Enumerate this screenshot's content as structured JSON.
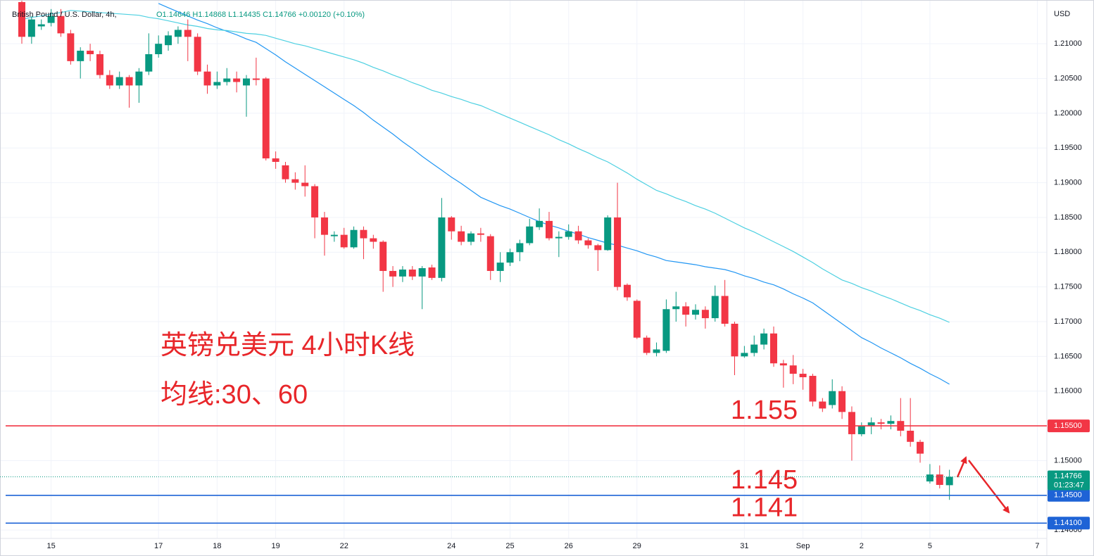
{
  "header": {
    "symbol": "British Pound / U.S. Dollar, 4h,",
    "ohlc": "O1.14646 H1.14868 L1.14435 C1.14766 +0.00120 (+0.10%)",
    "currency": "USD"
  },
  "chart_data": {
    "type": "candlestick",
    "annotations": [
      "英镑兑美元 4小时K线",
      "均线:30、60"
    ],
    "categories": [
      null,
      null,
      null,
      "15",
      null,
      null,
      null,
      null,
      null,
      null,
      null,
      null,
      null,
      null,
      "17",
      null,
      null,
      null,
      null,
      null,
      "18",
      null,
      null,
      null,
      null,
      null,
      "19",
      null,
      null,
      null,
      null,
      null,
      null,
      "22",
      null,
      null,
      null,
      null,
      null,
      null,
      null,
      null,
      null,
      null,
      "24",
      null,
      null,
      null,
      null,
      null,
      "25",
      null,
      null,
      null,
      null,
      null,
      "26",
      null,
      null,
      null,
      null,
      null,
      null,
      "29",
      null,
      null,
      null,
      null,
      null,
      null,
      null,
      null,
      null,
      null,
      "31",
      null,
      null,
      null,
      null,
      null,
      "Sep",
      null,
      null,
      null,
      null,
      null,
      "2",
      null,
      null,
      null,
      null,
      null,
      null,
      "5",
      null,
      null,
      null,
      null,
      null,
      null,
      null,
      null,
      null,
      null,
      "7"
    ],
    "open": [
      1.216,
      1.211,
      1.2125,
      1.213,
      1.214,
      1.2115,
      1.2075,
      1.209,
      1.2085,
      1.2055,
      1.204,
      1.2052,
      1.204,
      1.206,
      1.2085,
      1.2098,
      1.211,
      1.212,
      1.211,
      1.206,
      1.204,
      1.2045,
      1.205,
      1.204,
      1.205,
      1.205,
      1.1935,
      1.1925,
      1.1905,
      1.19,
      1.1895,
      1.185,
      1.1823,
      1.1825,
      1.1807,
      1.1832,
      1.182,
      1.1815,
      1.1773,
      1.1765,
      1.1775,
      1.1765,
      1.1778,
      1.1763,
      1.185,
      1.183,
      1.1815,
      1.1827,
      1.1823,
      1.1773,
      1.1785,
      1.18,
      1.1813,
      1.1836,
      1.1845,
      1.182,
      1.1822,
      1.183,
      1.1817,
      1.181,
      1.1803,
      1.185,
      1.1753,
      1.173,
      1.1677,
      1.1655,
      1.1658,
      1.1718,
      1.1722,
      1.171,
      1.1717,
      1.1705,
      1.1737,
      1.1697,
      1.165,
      1.1655,
      1.1667,
      1.1683,
      1.164,
      1.1637,
      1.1625,
      1.1622,
      1.1585,
      1.158,
      1.16,
      1.157,
      1.1538,
      1.155,
      1.1555,
      1.1553,
      1.1557,
      1.1543,
      1.1527,
      1.147,
      1.148,
      1.14646,
      null,
      null,
      null,
      null,
      null,
      null,
      null,
      null,
      null
    ],
    "high": [
      1.217,
      1.214,
      1.2135,
      1.215,
      1.215,
      1.212,
      1.2095,
      1.21,
      1.209,
      1.2062,
      1.206,
      1.2055,
      1.2065,
      1.2115,
      1.2112,
      1.2118,
      1.2125,
      1.2135,
      1.2115,
      1.207,
      1.206,
      1.2065,
      1.206,
      1.2055,
      1.208,
      1.2052,
      1.1945,
      1.193,
      1.1915,
      1.1925,
      1.1898,
      1.1858,
      1.183,
      1.1835,
      1.1837,
      1.1837,
      1.1825,
      1.1817,
      1.178,
      1.178,
      1.178,
      1.178,
      1.1782,
      1.1878,
      1.1852,
      1.1838,
      1.183,
      1.1835,
      1.1826,
      1.18,
      1.1805,
      1.1818,
      1.1848,
      1.1863,
      1.1858,
      1.183,
      1.184,
      1.1838,
      1.182,
      1.1812,
      1.1853,
      1.19,
      1.1755,
      1.1732,
      1.168,
      1.167,
      1.1732,
      1.1743,
      1.1728,
      1.1725,
      1.1722,
      1.1752,
      1.176,
      1.17,
      1.1665,
      1.168,
      1.169,
      1.1693,
      1.1645,
      1.1652,
      1.1632,
      1.1625,
      1.159,
      1.1617,
      1.1607,
      1.1578,
      1.1555,
      1.1562,
      1.156,
      1.1565,
      1.159,
      1.159,
      1.153,
      1.1495,
      1.1493,
      1.14868,
      null,
      null,
      null,
      null,
      null,
      null,
      null,
      null,
      null
    ],
    "low": [
      1.21,
      1.21,
      1.212,
      1.2125,
      1.211,
      1.207,
      1.205,
      1.2075,
      1.205,
      1.2035,
      1.2035,
      1.2008,
      1.2015,
      1.2055,
      1.208,
      1.209,
      1.21,
      1.2075,
      1.2055,
      1.2028,
      1.2035,
      1.204,
      1.203,
      1.1995,
      1.204,
      1.1932,
      1.192,
      1.19,
      1.189,
      1.188,
      1.182,
      1.1795,
      1.1815,
      1.1805,
      1.1805,
      1.179,
      1.1805,
      1.1743,
      1.175,
      1.1757,
      1.176,
      1.1718,
      1.176,
      1.1758,
      1.1818,
      1.181,
      1.181,
      1.1815,
      1.176,
      1.1757,
      1.178,
      1.1787,
      1.181,
      1.1832,
      1.1817,
      1.1793,
      1.1818,
      1.1812,
      1.1805,
      1.1773,
      1.1802,
      1.1745,
      1.173,
      1.1675,
      1.1652,
      1.165,
      1.1655,
      1.17,
      1.1693,
      1.1703,
      1.169,
      1.17,
      1.1693,
      1.1623,
      1.1648,
      1.165,
      1.166,
      1.1635,
      1.1605,
      1.161,
      1.1602,
      1.1578,
      1.157,
      1.1575,
      1.156,
      1.15,
      1.1535,
      1.1538,
      1.1545,
      1.1545,
      1.1535,
      1.152,
      1.1497,
      1.1467,
      1.146,
      1.14435,
      null,
      null,
      null,
      null,
      null,
      null,
      null,
      null,
      null
    ],
    "close": [
      1.211,
      1.2135,
      1.2128,
      1.214,
      1.2115,
      1.2075,
      1.209,
      1.2085,
      1.2055,
      1.204,
      1.2052,
      1.204,
      1.206,
      1.2085,
      1.21,
      1.2112,
      1.212,
      1.211,
      1.206,
      1.204,
      1.2045,
      1.205,
      1.2045,
      1.205,
      1.2048,
      1.1935,
      1.193,
      1.1905,
      1.19,
      1.1895,
      1.185,
      1.1825,
      1.1825,
      1.1807,
      1.1832,
      1.182,
      1.1815,
      1.1773,
      1.1765,
      1.1775,
      1.1765,
      1.1777,
      1.1763,
      1.185,
      1.183,
      1.1815,
      1.1827,
      1.1825,
      1.1773,
      1.1785,
      1.18,
      1.1813,
      1.1837,
      1.1845,
      1.182,
      1.1822,
      1.183,
      1.1817,
      1.181,
      1.1803,
      1.185,
      1.175,
      1.1735,
      1.1677,
      1.1655,
      1.166,
      1.1718,
      1.1722,
      1.171,
      1.1717,
      1.1705,
      1.1737,
      1.1697,
      1.165,
      1.1655,
      1.1667,
      1.1683,
      1.164,
      1.1637,
      1.1625,
      1.162,
      1.1585,
      1.1575,
      1.16,
      1.157,
      1.1538,
      1.155,
      1.1555,
      1.1553,
      1.1557,
      1.1543,
      1.1527,
      1.151,
      1.148,
      1.1465,
      1.14766,
      null,
      null,
      null,
      null,
      null,
      null,
      null,
      null,
      null
    ],
    "up_color": "#089981",
    "down_color": "#f23645",
    "lines": [
      {
        "color": "#2196f3",
        "values": [
          null,
          null,
          null,
          null,
          null,
          null,
          null,
          null,
          null,
          null,
          null,
          null,
          null,
          null,
          1.2158,
          1.2152,
          1.2146,
          1.214,
          1.2134,
          1.2129,
          1.2123,
          1.2118,
          1.2113,
          1.2107,
          1.2102,
          1.2093,
          1.2084,
          1.2074,
          1.2065,
          1.2056,
          1.2047,
          1.2038,
          1.2029,
          1.202,
          1.2011,
          1.2001,
          1.199,
          1.198,
          1.197,
          1.1959,
          1.1949,
          1.1938,
          1.1928,
          1.1918,
          1.1908,
          1.1899,
          1.1889,
          1.1879,
          1.1873,
          1.1867,
          1.1862,
          1.1856,
          1.185,
          1.1844,
          1.1839,
          1.1835,
          1.183,
          1.1826,
          1.1821,
          1.1817,
          1.1813,
          1.181,
          1.1806,
          1.1802,
          1.1797,
          1.1793,
          1.1788,
          1.1786,
          1.1784,
          1.1782,
          1.1779,
          1.1777,
          1.1775,
          1.1771,
          1.1766,
          1.1762,
          1.1757,
          1.1753,
          1.1747,
          1.174,
          1.1734,
          1.1727,
          1.1717,
          1.1707,
          1.1697,
          1.1687,
          1.1677,
          1.167,
          1.1662,
          1.1655,
          1.1648,
          1.164,
          1.1633,
          1.1625,
          1.1618,
          1.161,
          null,
          null,
          null,
          null,
          null,
          null,
          null,
          null,
          null
        ]
      },
      {
        "color": "#4dd0e1",
        "values": [
          1.2135,
          1.2138,
          1.214,
          1.2143,
          1.2145,
          1.2148,
          1.2147,
          1.2146,
          1.2145,
          1.2144,
          1.2143,
          1.2142,
          1.2141,
          1.2138,
          1.2136,
          1.2133,
          1.213,
          1.2127,
          1.2125,
          1.2122,
          1.212,
          1.2119,
          1.2117,
          1.2115,
          1.2114,
          1.2112,
          1.2108,
          1.2104,
          1.21,
          1.2097,
          1.2093,
          1.2089,
          1.2085,
          1.2081,
          1.2077,
          1.2072,
          1.2066,
          1.2061,
          1.2055,
          1.205,
          1.2044,
          1.2039,
          1.2033,
          1.2029,
          1.2024,
          1.202,
          1.2015,
          1.2011,
          1.2005,
          1.1999,
          1.1993,
          1.1987,
          1.1981,
          1.1975,
          1.1969,
          1.1962,
          1.1956,
          1.1949,
          1.1943,
          1.1936,
          1.193,
          1.1922,
          1.1914,
          1.1905,
          1.1897,
          1.1889,
          1.1884,
          1.1878,
          1.1873,
          1.1867,
          1.1862,
          1.1856,
          1.1849,
          1.1842,
          1.1835,
          1.1829,
          1.1822,
          1.1815,
          1.1808,
          1.1801,
          1.1793,
          1.1785,
          1.1776,
          1.1768,
          1.176,
          1.1755,
          1.1749,
          1.1744,
          1.1738,
          1.1733,
          1.1727,
          1.1721,
          1.1716,
          1.171,
          1.1705,
          1.1699,
          null,
          null,
          null,
          null,
          null,
          null,
          null,
          null,
          null
        ]
      }
    ],
    "levels": [
      {
        "value": 1.155,
        "label": "1.15500",
        "note": "1.155",
        "color": "#f23645"
      },
      {
        "value": 1.145,
        "label": "1.14500",
        "note": "1.145",
        "color": "#1e63d6"
      },
      {
        "value": 1.141,
        "label": "1.14100",
        "note": "1.141",
        "color": "#1e63d6"
      }
    ],
    "current_price": {
      "value": 1.14766,
      "label": "1.14766",
      "countdown": "01:23:47",
      "color": "#089981"
    },
    "ylim": [
      1.1388,
      1.2163
    ],
    "yticks": [
      {
        "value": 1.21,
        "label": "1.21000"
      },
      {
        "value": 1.205,
        "label": "1.20500"
      },
      {
        "value": 1.2,
        "label": "1.20000"
      },
      {
        "value": 1.195,
        "label": "1.19500"
      },
      {
        "value": 1.19,
        "label": "1.19000"
      },
      {
        "value": 1.185,
        "label": "1.18500"
      },
      {
        "value": 1.18,
        "label": "1.18000"
      },
      {
        "value": 1.175,
        "label": "1.17500"
      },
      {
        "value": 1.17,
        "label": "1.17000"
      },
      {
        "value": 1.165,
        "label": "1.16500"
      },
      {
        "value": 1.16,
        "label": "1.16000"
      },
      {
        "value": 1.15,
        "label": "1.15000"
      },
      {
        "value": 1.14,
        "label": "1.14000"
      }
    ],
    "grid": true
  }
}
